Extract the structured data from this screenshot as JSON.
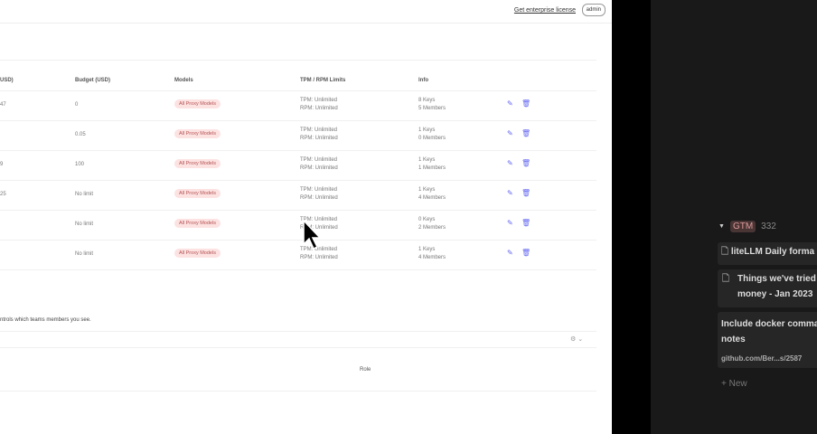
{
  "header": {
    "license_link": "Get enterprise license",
    "user_button": "admin"
  },
  "table": {
    "columns": [
      "USD)",
      "Budget (USD)",
      "Models",
      "TPM / RPM Limits",
      "Info"
    ],
    "rows": [
      {
        "spend": "47",
        "budget": "0",
        "models": "All Proxy Models",
        "tpm": "TPM: Unlimited",
        "rpm": "RPM: Unlimited",
        "keys": "8 Keys",
        "members": "5 Members"
      },
      {
        "spend": "",
        "budget": "0.05",
        "models": "All Proxy Models",
        "tpm": "TPM: Unlimited",
        "rpm": "RPM: Unlimited",
        "keys": "1 Keys",
        "members": "0 Members"
      },
      {
        "spend": "9",
        "budget": "100",
        "models": "All Proxy Models",
        "tpm": "TPM: Unlimited",
        "rpm": "RPM: Unlimited",
        "keys": "1 Keys",
        "members": "1 Members"
      },
      {
        "spend": "25",
        "budget": "No limit",
        "models": "All Proxy Models",
        "tpm": "TPM: Unlimited",
        "rpm": "RPM: Unlimited",
        "keys": "1 Keys",
        "members": "4 Members"
      },
      {
        "spend": "",
        "budget": "No limit",
        "models": "All Proxy Models",
        "tpm": "TPM: Unlimited",
        "rpm": "RPM: Unlimited",
        "keys": "0 Keys",
        "members": "2 Members"
      },
      {
        "spend": "",
        "budget": "No limit",
        "models": "All Proxy Models",
        "tpm": "TPM: Unlimited",
        "rpm": "RPM: Unlimited",
        "keys": "1 Keys",
        "members": "4 Members"
      }
    ]
  },
  "members": {
    "note": "ntrols which teams members you see.",
    "role_header": "Role"
  },
  "sidebar": {
    "group": "GTM",
    "count": "332",
    "cards": [
      "liteLLM Daily forma",
      "Things we've tried money - Jan 2023",
      "Include docker comma notes"
    ],
    "link": "github.com/Ber...s/2587",
    "new_label": "New"
  },
  "colors": {
    "accent": "#6366f1",
    "badge_bg": "#fde2e2",
    "dark_panel": "#191919"
  }
}
